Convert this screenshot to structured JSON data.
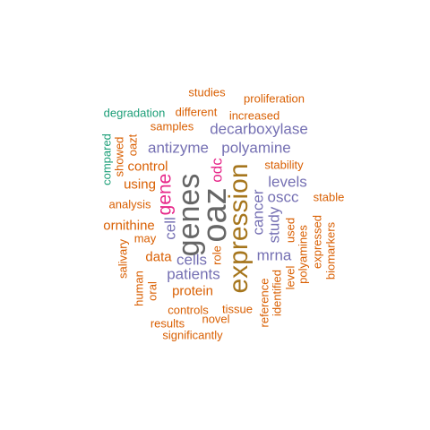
{
  "palette": {
    "orange": "#d95f02",
    "teal": "#1b9e77",
    "purple": "#7570b3",
    "magenta": "#e7298a",
    "brown": "#a6761d",
    "gray": "#666666"
  },
  "words": {
    "studies": "studies",
    "proliferation": "proliferation",
    "degradation": "degradation",
    "different": "different",
    "increased": "increased",
    "samples": "samples",
    "decarboxylase": "decarboxylase",
    "compared": "compared",
    "showed": "showed",
    "oazt": "oazt",
    "antizyme": "antizyme",
    "polyamine": "polyamine",
    "control": "control",
    "stability": "stability",
    "odc": "odc",
    "using": "using",
    "gene": "gene",
    "levels": "levels",
    "oscc": "oscc",
    "stable": "stable",
    "analysis": "analysis",
    "genes": "genes",
    "oaz": "oaz",
    "expression": "expression",
    "cancer": "cancer",
    "study": "study",
    "ornithine": "ornithine",
    "may": "may",
    "cell": "cell",
    "used": "used",
    "expressed": "expressed",
    "salivary": "salivary",
    "data": "data",
    "cells": "cells",
    "role": "role",
    "mrna": "mrna",
    "polyamines": "polyamines",
    "biomarkers": "biomarkers",
    "human": "human",
    "patients": "patients",
    "level": "level",
    "oral": "oral",
    "protein": "protein",
    "identified": "identified",
    "reference": "reference",
    "controls": "controls",
    "tissue": "tissue",
    "results": "results",
    "novel": "novel",
    "significantly": "significantly"
  }
}
